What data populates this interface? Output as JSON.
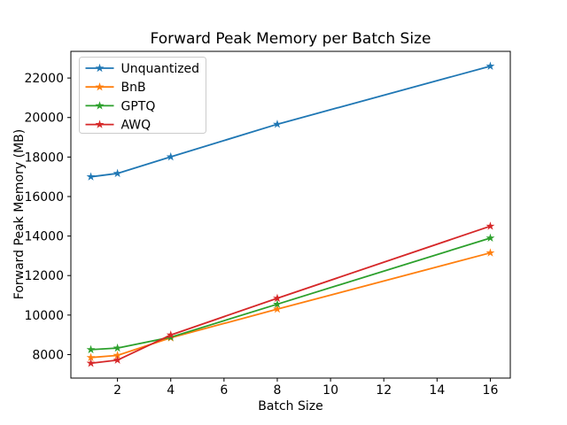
{
  "chart_data": {
    "type": "line",
    "title": "Forward Peak Memory per Batch Size",
    "xlabel": "Batch Size",
    "ylabel": "Forward Peak Memory (MB)",
    "x": [
      1,
      2,
      4,
      8,
      16
    ],
    "xticks": [
      2,
      4,
      6,
      8,
      10,
      12,
      14,
      16
    ],
    "yticks": [
      8000,
      10000,
      12000,
      14000,
      16000,
      18000,
      20000,
      22000
    ],
    "xlim": [
      0.25,
      16.75
    ],
    "ylim": [
      6810,
      23350
    ],
    "grid": false,
    "legend_position": "upper-left",
    "marker": "star",
    "axis_color": "#000000",
    "legend_border_color": "#cccccc",
    "series": [
      {
        "name": "Unquantized",
        "color": "#1f77b4",
        "values": [
          17000,
          17170,
          18010,
          19660,
          22600
        ]
      },
      {
        "name": "BnB",
        "color": "#ff7f0e",
        "values": [
          7850,
          7960,
          8850,
          10300,
          13150
        ]
      },
      {
        "name": "GPTQ",
        "color": "#2ca02c",
        "values": [
          8250,
          8330,
          8880,
          10550,
          13900
        ]
      },
      {
        "name": "AWQ",
        "color": "#d62728",
        "values": [
          7560,
          7720,
          8990,
          10850,
          14500
        ]
      }
    ]
  }
}
